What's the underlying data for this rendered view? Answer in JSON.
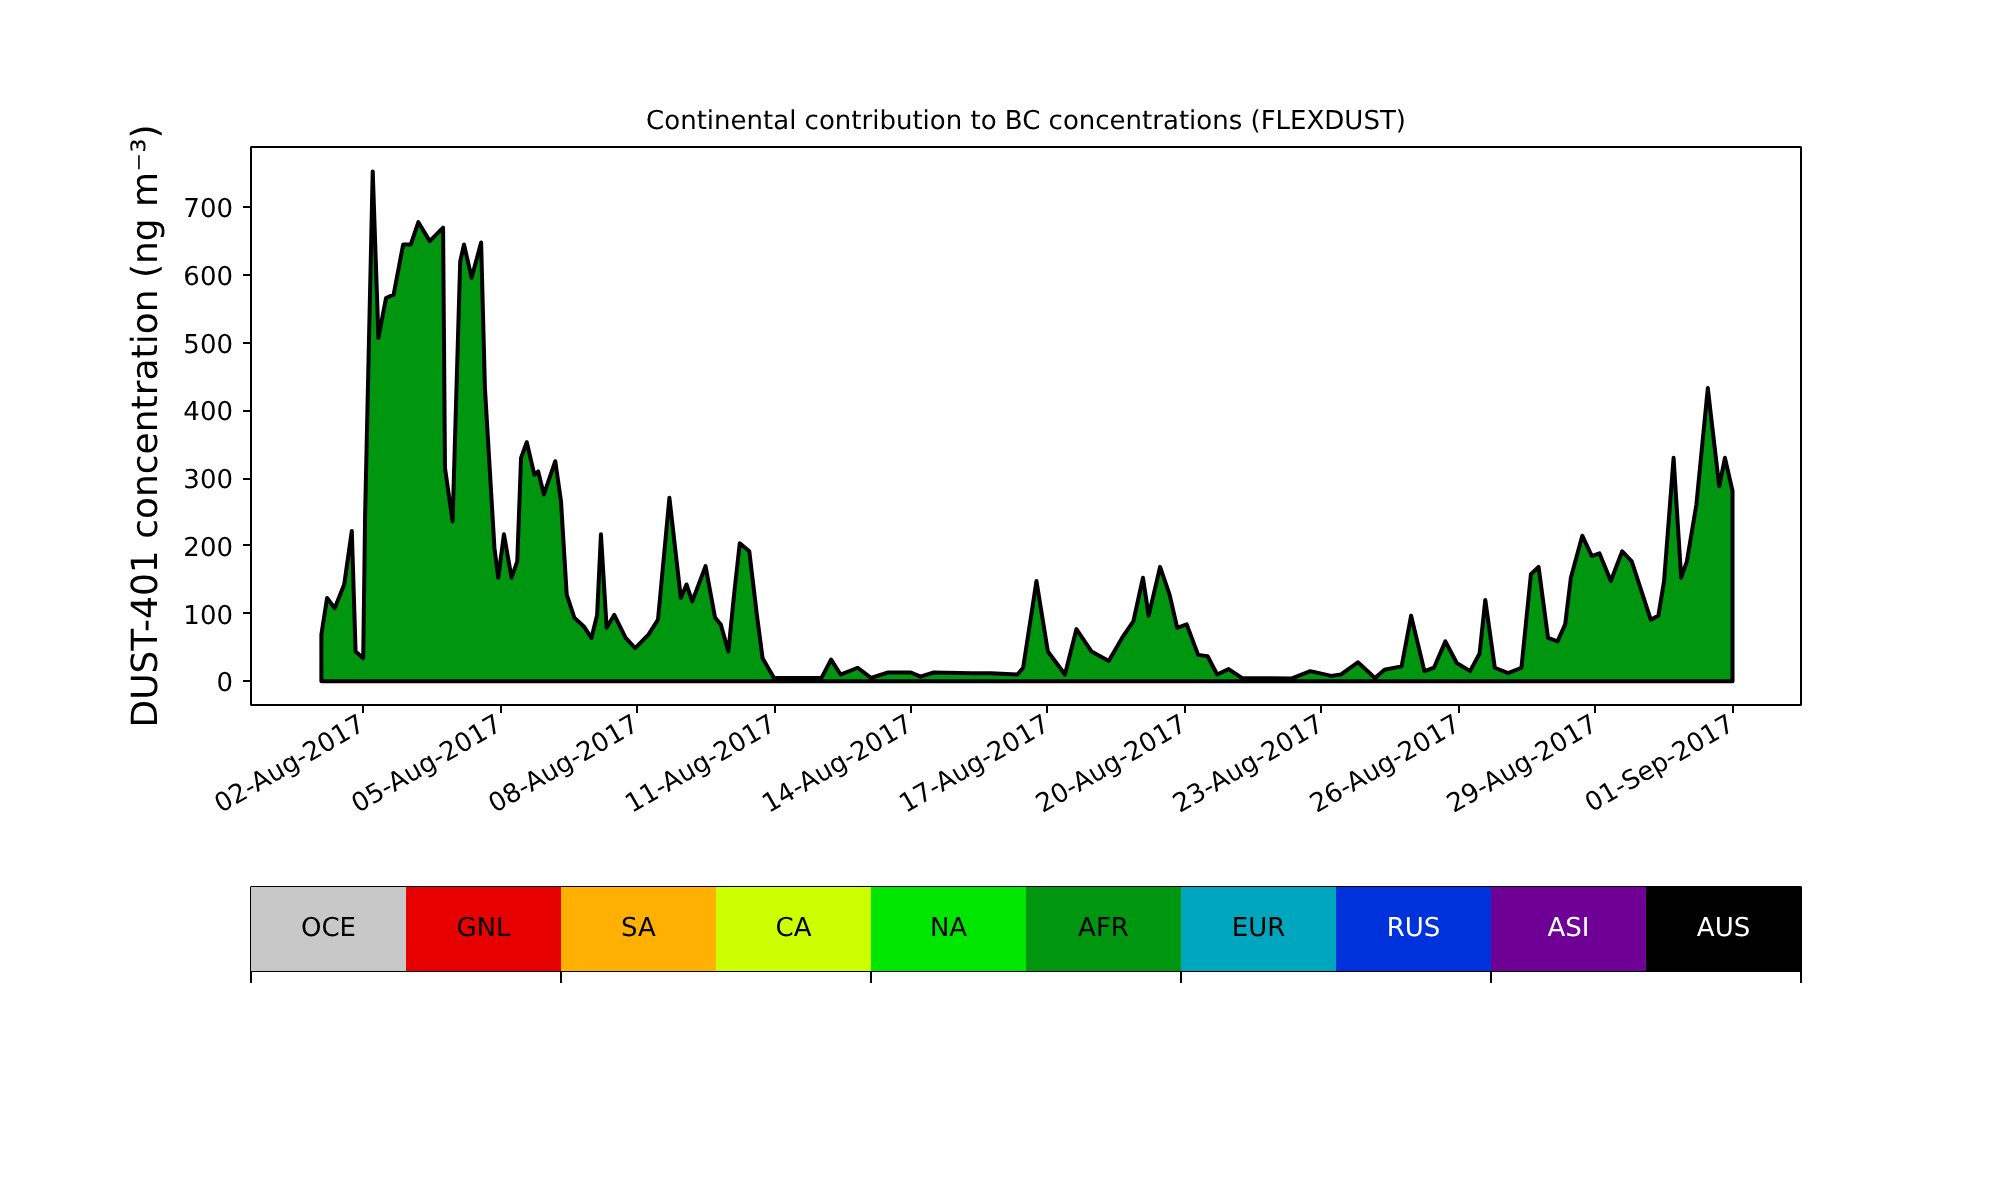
{
  "chart_data": [
    {
      "type": "area",
      "title": "Continental contribution to BC concentrations (FLEXDUST)",
      "ylabel": "DUST-401 concentration (ng m⁻³)",
      "xlim": [
        "2017-07-30T13:00",
        "2017-09-02T12:00"
      ],
      "xticks": [
        {
          "value": "2017-08-02",
          "label": "02-Aug-2017"
        },
        {
          "value": "2017-08-05",
          "label": "05-Aug-2017"
        },
        {
          "value": "2017-08-08",
          "label": "08-Aug-2017"
        },
        {
          "value": "2017-08-11",
          "label": "11-Aug-2017"
        },
        {
          "value": "2017-08-14",
          "label": "14-Aug-2017"
        },
        {
          "value": "2017-08-17",
          "label": "17-Aug-2017"
        },
        {
          "value": "2017-08-20",
          "label": "20-Aug-2017"
        },
        {
          "value": "2017-08-23",
          "label": "23-Aug-2017"
        },
        {
          "value": "2017-08-26",
          "label": "26-Aug-2017"
        },
        {
          "value": "2017-08-29",
          "label": "29-Aug-2017"
        },
        {
          "value": "2017-09-01",
          "label": "01-Sep-2017"
        }
      ],
      "ylim": [
        -35,
        789
      ],
      "yticks": [
        0,
        100,
        200,
        300,
        400,
        500,
        600,
        700
      ],
      "x": [
        "2017-08-01T02:00",
        "2017-08-01T05:00",
        "2017-08-01T09:00",
        "2017-08-01T14:00",
        "2017-08-01T18:00",
        "2017-08-01T20:00",
        "2017-08-02T00:00",
        "2017-08-02T01:00",
        "2017-08-02T05:00",
        "2017-08-02T08:00",
        "2017-08-02T12:00",
        "2017-08-02T16:00",
        "2017-08-02T21:00",
        "2017-08-03T01:00",
        "2017-08-03T05:00",
        "2017-08-03T11:00",
        "2017-08-03T18:00",
        "2017-08-03T19:00",
        "2017-08-03T23:00",
        "2017-08-04T03:00",
        "2017-08-04T05:00",
        "2017-08-04T09:00",
        "2017-08-04T14:00",
        "2017-08-04T16:00",
        "2017-08-04T21:00",
        "2017-08-04T23:00",
        "2017-08-05T02:00",
        "2017-08-05T06:00",
        "2017-08-05T09:00",
        "2017-08-05T11:00",
        "2017-08-05T14:00",
        "2017-08-05T18:00",
        "2017-08-05T20:00",
        "2017-08-05T23:00",
        "2017-08-06T05:00",
        "2017-08-06T08:00",
        "2017-08-06T11:00",
        "2017-08-06T15:00",
        "2017-08-06T20:00",
        "2017-08-07T00:00",
        "2017-08-07T03:00",
        "2017-08-07T05:00",
        "2017-08-07T08:00",
        "2017-08-07T12:00",
        "2017-08-07T18:00",
        "2017-08-07T23:00",
        "2017-08-08T06:00",
        "2017-08-08T11:00",
        "2017-08-08T17:00",
        "2017-08-08T23:00",
        "2017-08-09T02:00",
        "2017-08-09T05:00",
        "2017-08-09T12:00",
        "2017-08-09T17:00",
        "2017-08-09T20:00",
        "2017-08-10T00:00",
        "2017-08-10T03:00",
        "2017-08-10T06:00",
        "2017-08-10T11:00",
        "2017-08-10T15:00",
        "2017-08-10T18:00",
        "2017-08-11T00:00",
        "2017-08-11T09:00",
        "2017-08-12T01:00",
        "2017-08-12T06:00",
        "2017-08-12T11:00",
        "2017-08-12T20:00",
        "2017-08-13T03:00",
        "2017-08-13T12:00",
        "2017-08-14T00:00",
        "2017-08-14T05:00",
        "2017-08-14T12:00",
        "2017-08-15T08:00",
        "2017-08-15T18:00",
        "2017-08-16T08:00",
        "2017-08-16T11:00",
        "2017-08-16T18:00",
        "2017-08-17T00:00",
        "2017-08-17T09:00",
        "2017-08-17T15:00",
        "2017-08-17T23:00",
        "2017-08-18T08:00",
        "2017-08-18T15:00",
        "2017-08-18T21:00",
        "2017-08-19T02:00",
        "2017-08-19T05:00",
        "2017-08-19T11:00",
        "2017-08-19T16:00",
        "2017-08-19T20:00",
        "2017-08-20T01:00",
        "2017-08-20T07:00",
        "2017-08-20T12:00",
        "2017-08-20T17:00",
        "2017-08-20T23:00",
        "2017-08-21T06:00",
        "2017-08-22T08:00",
        "2017-08-22T18:00",
        "2017-08-23T05:00",
        "2017-08-23T10:00",
        "2017-08-23T19:00",
        "2017-08-24T04:00",
        "2017-08-24T09:00",
        "2017-08-24T18:00",
        "2017-08-24T23:00",
        "2017-08-25T06:00",
        "2017-08-25T11:00",
        "2017-08-25T17:00",
        "2017-08-25T23:00",
        "2017-08-26T06:00",
        "2017-08-26T11:00",
        "2017-08-26T14:00",
        "2017-08-26T19:00",
        "2017-08-27T02:00",
        "2017-08-27T09:00",
        "2017-08-27T14:00",
        "2017-08-27T18:00",
        "2017-08-27T23:00",
        "2017-08-28T04:00",
        "2017-08-28T08:00",
        "2017-08-28T11:00",
        "2017-08-28T17:00",
        "2017-08-28T22:00",
        "2017-08-29T02:00",
        "2017-08-29T08:00",
        "2017-08-29T14:00",
        "2017-08-29T19:00",
        "2017-08-30T05:00",
        "2017-08-30T09:00",
        "2017-08-30T12:00",
        "2017-08-30T17:00",
        "2017-08-30T21:00",
        "2017-08-31T00:00",
        "2017-08-31T05:00",
        "2017-08-31T11:00",
        "2017-08-31T13:00",
        "2017-08-31T17:00",
        "2017-08-31T20:00",
        "2017-09-01T00:00"
      ],
      "series": [
        {
          "color": "#00960f",
          "values": [
            69,
            123,
            108,
            143,
            222,
            44,
            34,
            246,
            753,
            507,
            566,
            571,
            645,
            645,
            678,
            650,
            670,
            315,
            236,
            620,
            645,
            596,
            648,
            433,
            197,
            153,
            217,
            153,
            177,
            330,
            353,
            305,
            310,
            276,
            325,
            266,
            128,
            94,
            81,
            64,
            98,
            217,
            79,
            98,
            64,
            49,
            69,
            91,
            271,
            123,
            143,
            118,
            170,
            94,
            84,
            44,
            128,
            204,
            192,
            98,
            34,
            5,
            5,
            5,
            32,
            10,
            20,
            5,
            13,
            13,
            7,
            13,
            12,
            12,
            10,
            20,
            148,
            44,
            10,
            77,
            44,
            30,
            64,
            89,
            153,
            97,
            169,
            128,
            79,
            84,
            39,
            37,
            10,
            18,
            5,
            4,
            15,
            8,
            10,
            28,
            5,
            17,
            22,
            97,
            15,
            20,
            59,
            27,
            15,
            41,
            120,
            20,
            12,
            20,
            158,
            169,
            64,
            59,
            84,
            153,
            215,
            185,
            189,
            148,
            192,
            177,
            91,
            97,
            148,
            330,
            153,
            177,
            261,
            433,
            384,
            288,
            330,
            281
          ]
        }
      ]
    },
    {
      "type": "other",
      "categories": [
        "OCE",
        "GNL",
        "SA",
        "CA",
        "NA",
        "AFR",
        "EUR",
        "RUS",
        "ASI",
        "AUS"
      ],
      "colors": [
        "#c8c8c8",
        "#e60000",
        "#ffb000",
        "#ccff00",
        "#00e600",
        "#00960f",
        "#00a5be",
        "#0032dc",
        "#6e0096",
        "#000000"
      ]
    }
  ]
}
